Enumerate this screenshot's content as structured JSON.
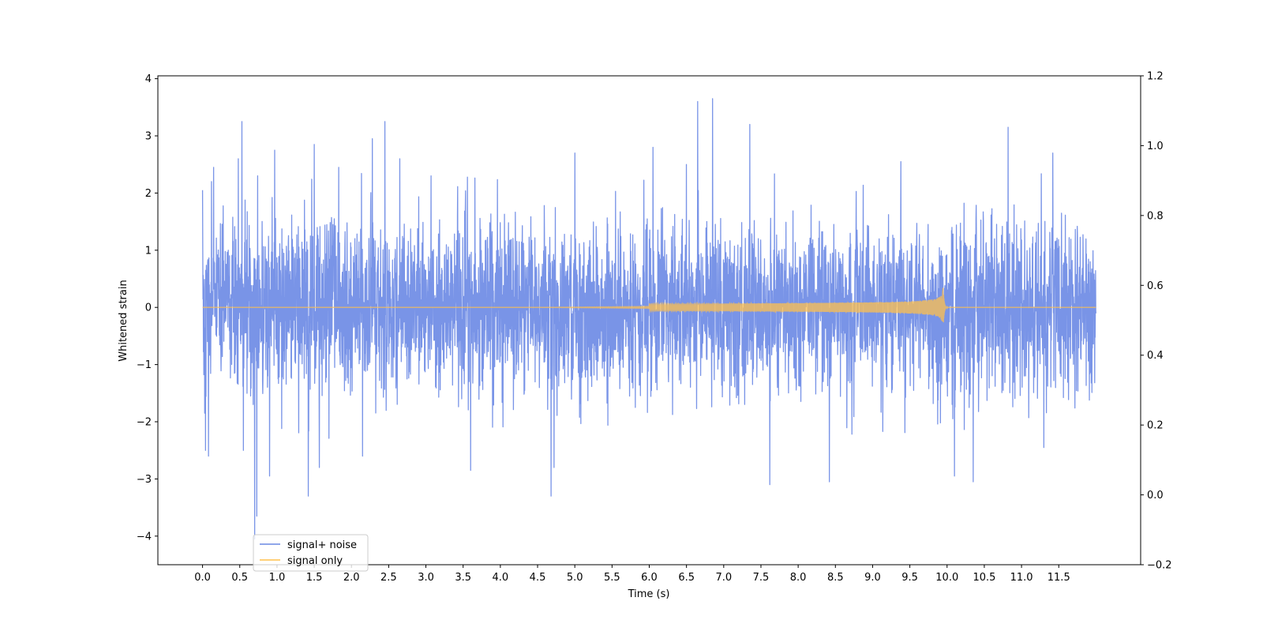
{
  "chart_data": {
    "type": "line",
    "title": "",
    "xlabel": "Time (s)",
    "ylabel": "Whitened strain",
    "xlim": [
      -0.6,
      12.6
    ],
    "ylim": [
      -4.5,
      4.05
    ],
    "y2lim": [
      -0.2,
      1.2
    ],
    "x_ticks": [
      0.0,
      0.5,
      1.0,
      1.5,
      2.0,
      2.5,
      3.0,
      3.5,
      4.0,
      4.5,
      5.0,
      5.5,
      6.0,
      6.5,
      7.0,
      7.5,
      8.0,
      8.5,
      9.0,
      9.5,
      10.0,
      10.5,
      11.0,
      11.5
    ],
    "x_tick_labels": [
      "0.0",
      "0.5",
      "1.0",
      "1.5",
      "2.0",
      "2.5",
      "3.0",
      "3.5",
      "4.0",
      "4.5",
      "5.0",
      "5.5",
      "6.0",
      "6.5",
      "7.0",
      "7.5",
      "8.0",
      "8.5",
      "9.0",
      "9.5",
      "10.0",
      "10.5",
      "11.0",
      "11.5"
    ],
    "y_ticks": [
      4,
      3,
      2,
      1,
      0,
      -1,
      -2,
      -3,
      -4
    ],
    "y_tick_labels": [
      "4",
      "3",
      "2",
      "1",
      "0",
      "−1",
      "−2",
      "−3",
      "−4"
    ],
    "y2_ticks": [
      1.2,
      1.0,
      0.8,
      0.6,
      0.4,
      0.2,
      0.0,
      -0.2
    ],
    "y2_tick_labels": [
      "1.2",
      "1.0",
      "0.8",
      "0.6",
      "0.4",
      "0.2",
      "0.0",
      "−0.2"
    ],
    "grid": false,
    "legend": {
      "position": "lower-left"
    },
    "series": [
      {
        "name": "signal+ noise",
        "color": "#6a88e4",
        "alpha": 0.9,
        "t_range": [
          0.0,
          12.0
        ],
        "peaks": [
          {
            "x": 0.0,
            "y": 2.05
          },
          {
            "x": 0.03,
            "y": -1.85
          },
          {
            "x": 0.04,
            "y": -2.5
          },
          {
            "x": 0.08,
            "y": -2.6
          },
          {
            "x": 0.12,
            "y": 2.2
          },
          {
            "x": 0.15,
            "y": 2.45
          },
          {
            "x": 0.48,
            "y": 2.6
          },
          {
            "x": 0.53,
            "y": 3.25
          },
          {
            "x": 0.55,
            "y": -2.5
          },
          {
            "x": 0.7,
            "y": -4.05
          },
          {
            "x": 0.73,
            "y": -3.65
          },
          {
            "x": 0.74,
            "y": 2.3
          },
          {
            "x": 0.9,
            "y": -2.95
          },
          {
            "x": 0.97,
            "y": 2.75
          },
          {
            "x": 1.42,
            "y": -3.3
          },
          {
            "x": 1.5,
            "y": 2.85
          },
          {
            "x": 1.57,
            "y": -2.8
          },
          {
            "x": 1.83,
            "y": 2.45
          },
          {
            "x": 2.15,
            "y": -2.6
          },
          {
            "x": 2.28,
            "y": 2.95
          },
          {
            "x": 2.45,
            "y": 3.25
          },
          {
            "x": 2.65,
            "y": 2.6
          },
          {
            "x": 3.07,
            "y": 2.3
          },
          {
            "x": 3.6,
            "y": -2.85
          },
          {
            "x": 4.68,
            "y": -3.3
          },
          {
            "x": 4.72,
            "y": -2.8
          },
          {
            "x": 5.0,
            "y": 2.7
          },
          {
            "x": 6.05,
            "y": 2.8
          },
          {
            "x": 6.5,
            "y": 2.5
          },
          {
            "x": 6.65,
            "y": 3.6
          },
          {
            "x": 6.85,
            "y": 3.65
          },
          {
            "x": 7.35,
            "y": 3.2
          },
          {
            "x": 7.62,
            "y": -3.1
          },
          {
            "x": 8.42,
            "y": -3.05
          },
          {
            "x": 9.38,
            "y": 2.55
          },
          {
            "x": 10.1,
            "y": -2.95
          },
          {
            "x": 10.35,
            "y": -3.05
          },
          {
            "x": 10.82,
            "y": 3.15
          },
          {
            "x": 11.3,
            "y": -2.45
          },
          {
            "x": 11.42,
            "y": 2.7
          }
        ]
      },
      {
        "name": "signal only",
        "color": "#ffc04d",
        "alpha": 0.9,
        "chirp_start": 6.0,
        "merger_time": 9.95,
        "peak_amplitude": 0.35,
        "t_range": [
          0.0,
          12.0
        ]
      }
    ]
  }
}
